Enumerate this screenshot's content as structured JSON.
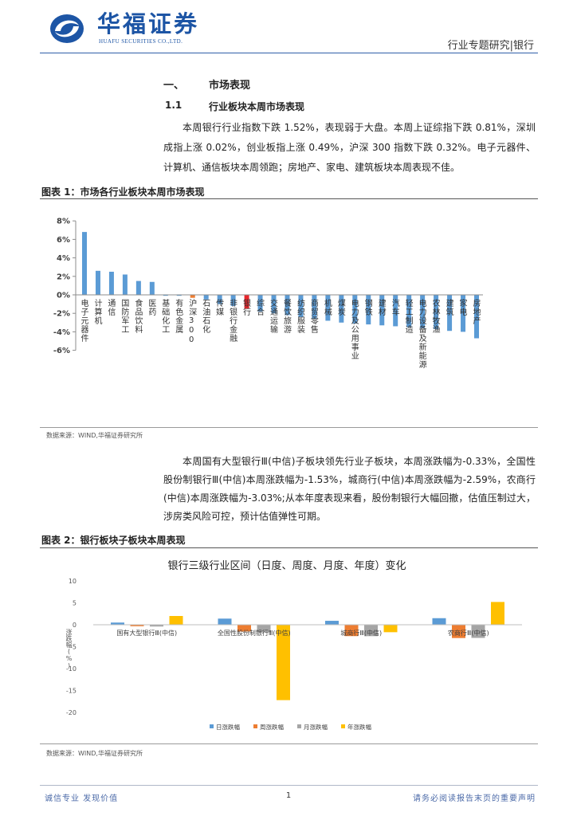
{
  "header": {
    "logo_name": "华福证券",
    "logo_subtitle": "HUAFU SECURITIES CO.,LTD.",
    "report_type": "行业专题研究|银行",
    "brand_color": "#1d55a5"
  },
  "section": {
    "heading_number": "一、",
    "heading_title": "市场表现",
    "sub_number": "1.1",
    "sub_title": "行业板块本周市场表现",
    "paragraph1": "本周银行行业指数下跌 1.52%，表现弱于大盘。本周上证综指下跌 0.81%，深圳成指上涨 0.02%，创业板指上涨 0.49%，沪深 300 指数下跌 0.32%。电子元器件、计算机、通信板块本周领跑；房地产、家电、建筑板块本周表现不佳。",
    "paragraph2": "本周国有大型银行Ⅲ(中信)子板块领先行业子板块，本周涨跌幅为-0.33%，全国性股份制银行Ⅲ(中信)本周涨跌幅为-1.53%，城商行(中信)本周涨跌幅为-2.59%，农商行(中信)本周涨跌幅为-3.03%;从本年度表现来看，股份制银行大幅回撤，估值压制过大，涉房类风险可控，预计估值弹性可期。"
  },
  "figure1": {
    "label": "图表 1：市场各行业板块本周市场表现",
    "source": "数据来源：WIND,华福证券研究所"
  },
  "figure2": {
    "label": "图表 2：银行板块子板块本周表现",
    "source": "数据来源：WIND,华福证券研究所"
  },
  "footer": {
    "slogan": "诚信专业  发现价值",
    "page_number": "1",
    "disclaimer": "请务必阅读报告末页的重要声明"
  },
  "chart_data": [
    {
      "type": "bar",
      "categories": [
        "电子元器件",
        "计算机",
        "通信",
        "国防军工",
        "食品饮料",
        "医药",
        "基础化工",
        "有色金属",
        "沪深300",
        "石油石化",
        "传媒",
        "非银行金融",
        "银行",
        "综合",
        "交通运输",
        "餐饮旅游",
        "纺织服装",
        "商贸零售",
        "机械",
        "煤炭",
        "电力及公用事业",
        "钢铁",
        "建材",
        "汽车",
        "轻工制造",
        "电力设备及新能源",
        "农林牧渔",
        "建筑",
        "家电",
        "房地产"
      ],
      "values": [
        6.8,
        2.6,
        2.5,
        2.2,
        1.5,
        1.4,
        -0.1,
        -0.1,
        -0.32,
        -0.5,
        -1.0,
        -1.2,
        -1.52,
        -1.8,
        -2.0,
        -2.2,
        -2.4,
        -2.6,
        -2.8,
        -3.0,
        -3.1,
        -3.2,
        -3.3,
        -3.4,
        -3.5,
        -3.6,
        -3.7,
        -3.9,
        -4.0,
        -4.7
      ],
      "bar_color": "#5b9bd5",
      "highlight": {
        "银行": "#e8262c",
        "沪深300": "#ed7d31"
      },
      "yticks": [
        "8%",
        "6%",
        "4%",
        "2%",
        "0%",
        "-2%",
        "-4%",
        "-6%"
      ],
      "ylim": [
        -6,
        8
      ],
      "grid": false
    },
    {
      "type": "bar",
      "title": "银行三级行业区间（日度、周度、月度、年度）变化",
      "ylabel": "涨跌幅(%)",
      "categories": [
        "国有大型银行Ⅲ(中信)",
        "全国性股份制银行Ⅲ(中信)",
        "城商行Ⅲ(中信)",
        "农商行Ⅲ(中信)"
      ],
      "series": [
        {
          "name": "日涨跌幅",
          "color": "#5b9bd5",
          "values": [
            0.5,
            1.4,
            0.9,
            1.5
          ]
        },
        {
          "name": "周涨跌幅",
          "color": "#ed7d31",
          "values": [
            -0.33,
            -1.53,
            -2.59,
            -3.03
          ]
        },
        {
          "name": "月涨跌幅",
          "color": "#a5a5a5",
          "values": [
            -0.4,
            -1.7,
            -2.6,
            -3.0
          ]
        },
        {
          "name": "年涨跌幅",
          "color": "#ffc000",
          "values": [
            2.0,
            -17.2,
            -1.7,
            5.2
          ]
        }
      ],
      "yticks": [
        "10",
        "5",
        "0",
        "-5",
        "-10",
        "-15",
        "-20"
      ],
      "ylim": [
        -20,
        10
      ],
      "grid": false,
      "legend_position": "bottom"
    }
  ]
}
